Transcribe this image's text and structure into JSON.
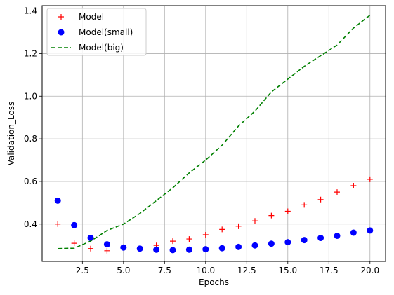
{
  "chart_data": {
    "type": "line",
    "xlabel": "Epochs",
    "ylabel": "Validation_Loss",
    "xlim": [
      0.05,
      20.95
    ],
    "ylim": [
      0.225,
      1.425
    ],
    "grid": true,
    "legend_position": "top-left",
    "x_ticks": [
      2.5,
      5.0,
      7.5,
      10.0,
      12.5,
      15.0,
      17.5,
      20.0
    ],
    "x_tick_labels": [
      "2.5",
      "5.0",
      "7.5",
      "10.0",
      "12.5",
      "15.0",
      "17.5",
      "20.0"
    ],
    "y_ticks": [
      0.4,
      0.6,
      0.8,
      1.0,
      1.2,
      1.4
    ],
    "y_tick_labels": [
      "0.4",
      "0.6",
      "0.8",
      "1.0",
      "1.2",
      "1.4"
    ],
    "x": [
      1,
      2,
      3,
      4,
      5,
      6,
      7,
      8,
      9,
      10,
      11,
      12,
      13,
      14,
      15,
      16,
      17,
      18,
      19,
      20
    ],
    "series": [
      {
        "name": "Model",
        "style": "plus",
        "color": "#ff0000",
        "values": [
          0.4,
          0.31,
          0.285,
          0.275,
          0.29,
          0.285,
          0.3,
          0.32,
          0.33,
          0.35,
          0.375,
          0.39,
          0.415,
          0.44,
          0.46,
          0.49,
          0.515,
          0.55,
          0.58,
          0.61
        ]
      },
      {
        "name": "Model(small)",
        "style": "dot",
        "color": "#0000ff",
        "values": [
          0.51,
          0.395,
          0.335,
          0.305,
          0.29,
          0.285,
          0.28,
          0.278,
          0.28,
          0.282,
          0.287,
          0.293,
          0.3,
          0.308,
          0.315,
          0.325,
          0.335,
          0.345,
          0.36,
          0.37
        ]
      },
      {
        "name": "Model(big)",
        "style": "dashed",
        "color": "#008000",
        "values": [
          0.285,
          0.287,
          0.32,
          0.37,
          0.4,
          0.45,
          0.51,
          0.57,
          0.64,
          0.7,
          0.77,
          0.86,
          0.93,
          1.02,
          1.08,
          1.14,
          1.19,
          1.24,
          1.32,
          1.38
        ]
      }
    ]
  }
}
